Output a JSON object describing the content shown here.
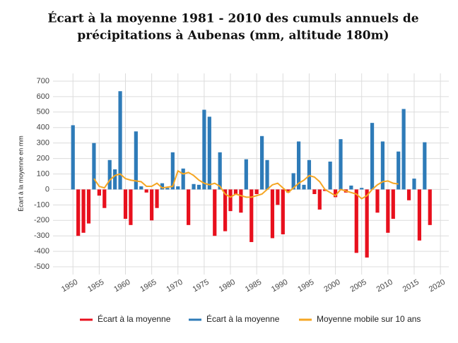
{
  "chart_data": {
    "type": "bar",
    "title_lines": [
      "Écart à la moyenne 1981 - 2010 des cumuls annuels de",
      "précipitations à Aubenas (mm, altitude 180m)"
    ],
    "ylabel": "Écart à la moyenne en mm",
    "x": [
      1950,
      1951,
      1952,
      1953,
      1954,
      1955,
      1956,
      1957,
      1958,
      1959,
      1960,
      1961,
      1962,
      1963,
      1964,
      1965,
      1966,
      1967,
      1968,
      1969,
      1970,
      1971,
      1972,
      1973,
      1974,
      1975,
      1976,
      1977,
      1978,
      1979,
      1980,
      1981,
      1982,
      1983,
      1984,
      1985,
      1986,
      1987,
      1988,
      1989,
      1990,
      1991,
      1992,
      1993,
      1994,
      1995,
      1996,
      1997,
      1998,
      1999,
      2000,
      2001,
      2002,
      2003,
      2004,
      2005,
      2006,
      2007,
      2008,
      2009,
      2010,
      2011,
      2012,
      2013,
      2014,
      2015,
      2016,
      2017,
      2018
    ],
    "series": [
      {
        "name": "Écart à la moyenne",
        "color": "#e8101d",
        "kind": "bar",
        "values": [
          null,
          -300,
          -280,
          -220,
          null,
          -40,
          -120,
          null,
          null,
          null,
          -190,
          -230,
          null,
          null,
          -20,
          -200,
          -120,
          null,
          null,
          null,
          null,
          null,
          -230,
          null,
          null,
          null,
          null,
          -300,
          null,
          -270,
          -140,
          -30,
          -150,
          null,
          -340,
          -30,
          null,
          null,
          -315,
          -100,
          -290,
          -20,
          null,
          null,
          null,
          null,
          -30,
          -130,
          -10,
          null,
          -50,
          null,
          -20,
          null,
          -410,
          null,
          -440,
          null,
          -150,
          null,
          -280,
          -190,
          null,
          null,
          -70,
          null,
          -330,
          null,
          -230
        ]
      },
      {
        "name": "Écart à la moyenne",
        "color": "#2e7bb8",
        "kind": "bar",
        "values": [
          415,
          null,
          null,
          null,
          300,
          null,
          null,
          190,
          130,
          635,
          null,
          null,
          375,
          20,
          null,
          null,
          null,
          40,
          10,
          240,
          20,
          135,
          null,
          35,
          30,
          515,
          470,
          null,
          240,
          null,
          null,
          null,
          null,
          195,
          null,
          null,
          345,
          190,
          null,
          null,
          null,
          null,
          105,
          310,
          30,
          190,
          null,
          null,
          null,
          180,
          null,
          325,
          null,
          25,
          null,
          10,
          null,
          430,
          null,
          310,
          null,
          null,
          245,
          520,
          null,
          70,
          null,
          305,
          null
        ]
      },
      {
        "name": "Moyenne mobile sur 10 ans",
        "color": "#f5a623",
        "kind": "line",
        "values": [
          null,
          null,
          null,
          null,
          70,
          20,
          10,
          60,
          90,
          100,
          70,
          60,
          55,
          50,
          20,
          20,
          40,
          10,
          15,
          20,
          120,
          100,
          110,
          90,
          60,
          40,
          30,
          40,
          20,
          -30,
          -50,
          -30,
          -40,
          -50,
          -50,
          -40,
          -30,
          0,
          30,
          40,
          10,
          -20,
          10,
          40,
          60,
          90,
          80,
          50,
          0,
          -20,
          -40,
          0,
          -10,
          -20,
          -30,
          -60,
          -40,
          0,
          30,
          50,
          55,
          40,
          35,
          null,
          null,
          null,
          null,
          null,
          null
        ]
      }
    ],
    "xlim": [
      1946.2,
      2021.6
    ],
    "xticks": [
      1950,
      1955,
      1960,
      1965,
      1970,
      1975,
      1980,
      1985,
      1990,
      1995,
      2000,
      2005,
      2010,
      2015,
      2020
    ],
    "ylim": [
      -550,
      750
    ],
    "yticks": [
      -500,
      -400,
      -300,
      -200,
      -100,
      0,
      100,
      200,
      300,
      400,
      500,
      600,
      700
    ],
    "grid": true
  }
}
